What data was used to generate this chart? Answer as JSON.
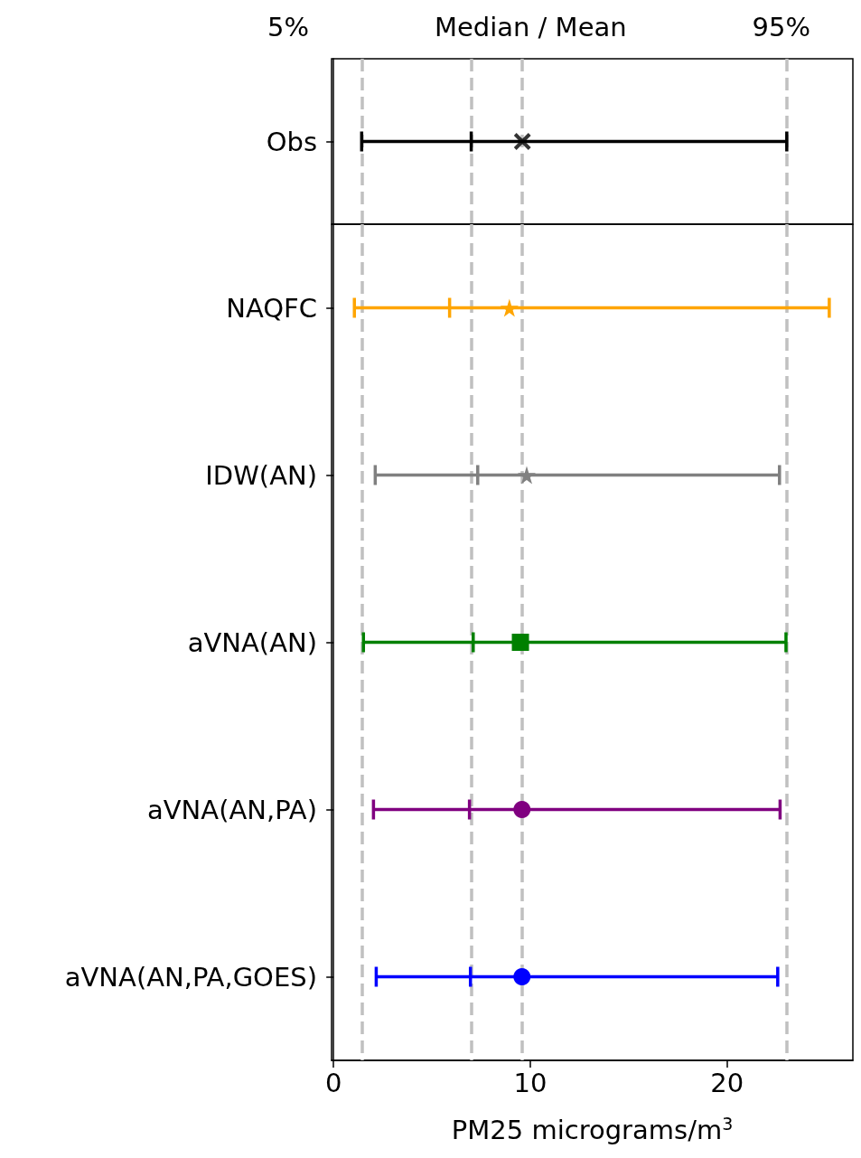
{
  "chart_data": [
    {
      "type": "box",
      "orientation": "horizontal",
      "categories": [
        "Obs"
      ],
      "xlim": [
        -0.1,
        26.4
      ],
      "tick_labels": "y",
      "grid": false,
      "annotations": [
        "5%",
        "Median / Mean",
        "95%"
      ],
      "ref_lines": [
        {
          "axis": "x",
          "value": 1.43,
          "color": "#c0c0c0",
          "line_style": "dashed"
        },
        {
          "axis": "x",
          "value": 7.0,
          "color": "#c0c0c0",
          "line_style": "dashed"
        },
        {
          "axis": "x",
          "value": 9.6,
          "color": "#c0c0c0",
          "line_style": "dashed"
        },
        {
          "axis": "x",
          "value": 23.04,
          "color": "#c0c0c0",
          "line_style": "dashed"
        }
      ],
      "series": [
        {
          "color": "#000000",
          "marker": "cross",
          "boxes": [
            {
              "low": 1.43,
              "q1": 7.0,
              "median": 7.0,
              "q3": 7.0,
              "high": 23.04,
              "mean": 9.6
            }
          ]
        }
      ]
    },
    {
      "type": "box",
      "orientation": "horizontal",
      "categories": [
        "NAQFC",
        "IDW(AN)",
        "aVNA(AN)",
        "aVNA(AN,PA)",
        "aVNA(AN,PA,GOES)"
      ],
      "xlim": [
        -0.1,
        26.4
      ],
      "xticks": [
        0,
        10,
        20
      ],
      "xlabel": "PM25 micrograms/m$^{3}$",
      "grid": false,
      "ref_lines": [
        {
          "axis": "x",
          "value": 1.43,
          "color": "#c0c0c0",
          "line_style": "dashed"
        },
        {
          "axis": "x",
          "value": 7.0,
          "color": "#c0c0c0",
          "line_style": "dashed"
        },
        {
          "axis": "x",
          "value": 9.6,
          "color": "#c0c0c0",
          "line_style": "dashed"
        },
        {
          "axis": "x",
          "value": 23.04,
          "color": "#c0c0c0",
          "line_style": "dashed"
        }
      ],
      "series": [
        {
          "color": "#ffa500",
          "marker": "star",
          "boxes": [
            {
              "low": 1.06,
              "q1": 5.9,
              "median": 5.9,
              "q3": 5.9,
              "high": 25.2,
              "mean": 8.94
            },
            null,
            null,
            null,
            null
          ]
        },
        {
          "color": "#808080",
          "marker": "star",
          "boxes": [
            null,
            {
              "low": 2.12,
              "q1": 7.33,
              "median": 7.33,
              "q3": 7.33,
              "high": 22.67,
              "mean": 9.82
            },
            null,
            null,
            null
          ]
        },
        {
          "color": "#008000",
          "marker": "square",
          "boxes": [
            null,
            null,
            {
              "low": 1.52,
              "q1": 7.1,
              "median": 7.1,
              "q3": 7.1,
              "high": 23.0,
              "mean": 9.5
            },
            null,
            null
          ]
        },
        {
          "color": "#800080",
          "marker": "circle",
          "boxes": [
            null,
            null,
            null,
            {
              "low": 2.03,
              "q1": 6.91,
              "median": 6.91,
              "q3": 6.91,
              "high": 22.7,
              "mean": 9.58
            },
            null
          ]
        },
        {
          "color": "#0000ff",
          "marker": "circle",
          "boxes": [
            null,
            null,
            null,
            null,
            {
              "low": 2.17,
              "q1": 6.96,
              "median": 6.96,
              "q3": 6.96,
              "high": 22.58,
              "mean": 9.58
            }
          ]
        }
      ]
    }
  ]
}
